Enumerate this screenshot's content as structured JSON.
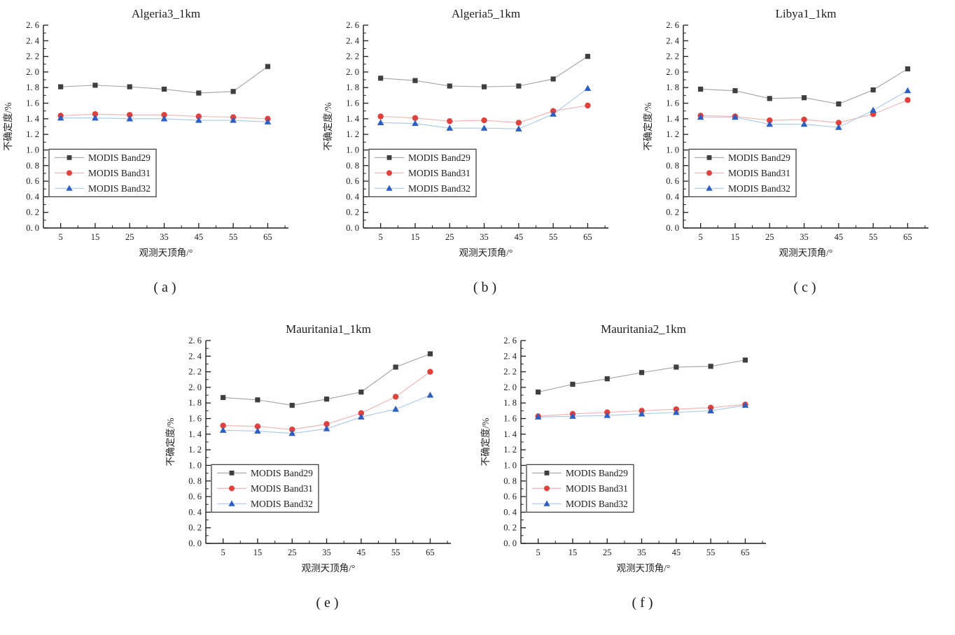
{
  "figure": {
    "background": "#ffffff",
    "text_color": "#1c1c1c",
    "axis_color": "#1c1c1c",
    "palette": {
      "band29_marker": "#3f3f3f",
      "band29_line": "#a3a3a3",
      "band31_marker": "#e0413c",
      "band31_line": "#f3b1af",
      "band32_marker": "#2d5fc2",
      "band32_line": "#a9c7e9"
    }
  },
  "chart_data": [
    {
      "type": "line",
      "title": "Algeria3_1km",
      "caption": "(a)",
      "xlabel": "观测天顶角/°",
      "ylabel": "不确定度/%",
      "x": [
        5,
        15,
        25,
        35,
        45,
        55,
        65
      ],
      "xlim": [
        0,
        71
      ],
      "ylim": [
        0,
        2.6
      ],
      "ytick_step": 0.2,
      "grid": false,
      "legend_position": "left-middle",
      "series": [
        {
          "name": "MODIS Band29",
          "marker": "square",
          "marker_color": "#3f3f3f",
          "line_color": "#a3a3a3",
          "values": [
            1.81,
            1.83,
            1.81,
            1.78,
            1.73,
            1.75,
            2.07
          ]
        },
        {
          "name": "MODIS Band31",
          "marker": "circle",
          "marker_color": "#e0413c",
          "line_color": "#f3b1af",
          "values": [
            1.44,
            1.46,
            1.45,
            1.45,
            1.43,
            1.42,
            1.4
          ]
        },
        {
          "name": "MODIS Band32",
          "marker": "triangle",
          "marker_color": "#2d5fc2",
          "line_color": "#a9c7e9",
          "values": [
            1.41,
            1.41,
            1.4,
            1.4,
            1.38,
            1.38,
            1.36
          ]
        }
      ]
    },
    {
      "type": "line",
      "title": "Algeria5_1km",
      "caption": "(b)",
      "xlabel": "观测天顶角/°",
      "ylabel": "不确定度/%",
      "x": [
        5,
        15,
        25,
        35,
        45,
        55,
        65
      ],
      "xlim": [
        0,
        71
      ],
      "ylim": [
        0,
        2.6
      ],
      "ytick_step": 0.2,
      "grid": false,
      "legend_position": "left-middle",
      "series": [
        {
          "name": "MODIS Band29",
          "marker": "square",
          "marker_color": "#3f3f3f",
          "line_color": "#a3a3a3",
          "values": [
            1.92,
            1.89,
            1.82,
            1.81,
            1.82,
            1.91,
            2.2
          ]
        },
        {
          "name": "MODIS Band31",
          "marker": "circle",
          "marker_color": "#e0413c",
          "line_color": "#f3b1af",
          "values": [
            1.43,
            1.41,
            1.37,
            1.38,
            1.35,
            1.5,
            1.57
          ]
        },
        {
          "name": "MODIS Band32",
          "marker": "triangle",
          "marker_color": "#2d5fc2",
          "line_color": "#a9c7e9",
          "values": [
            1.35,
            1.34,
            1.28,
            1.28,
            1.27,
            1.46,
            1.79
          ]
        }
      ]
    },
    {
      "type": "line",
      "title": "Libya1_1km",
      "caption": "(c)",
      "xlabel": "观测天顶角/°",
      "ylabel": "不确定度/%",
      "x": [
        5,
        15,
        25,
        35,
        45,
        55,
        65
      ],
      "xlim": [
        0,
        71
      ],
      "ylim": [
        0,
        2.6
      ],
      "ytick_step": 0.2,
      "grid": false,
      "legend_position": "left-middle",
      "series": [
        {
          "name": "MODIS Band29",
          "marker": "square",
          "marker_color": "#3f3f3f",
          "line_color": "#a3a3a3",
          "values": [
            1.78,
            1.76,
            1.66,
            1.67,
            1.59,
            1.77,
            2.04
          ]
        },
        {
          "name": "MODIS Band31",
          "marker": "circle",
          "marker_color": "#e0413c",
          "line_color": "#f3b1af",
          "values": [
            1.44,
            1.43,
            1.38,
            1.39,
            1.35,
            1.46,
            1.64
          ]
        },
        {
          "name": "MODIS Band32",
          "marker": "triangle",
          "marker_color": "#2d5fc2",
          "line_color": "#a9c7e9",
          "values": [
            1.42,
            1.42,
            1.33,
            1.33,
            1.29,
            1.51,
            1.76
          ]
        }
      ]
    },
    {
      "type": "line",
      "title": "Mauritania1_1km",
      "caption": "(e)",
      "xlabel": "观测天顶角/°",
      "ylabel": "不确定度/%",
      "x": [
        5,
        15,
        25,
        35,
        45,
        55,
        65
      ],
      "xlim": [
        0,
        71
      ],
      "ylim": [
        0,
        2.6
      ],
      "ytick_step": 0.2,
      "grid": false,
      "legend_position": "left-middle",
      "series": [
        {
          "name": "MODIS Band29",
          "marker": "square",
          "marker_color": "#3f3f3f",
          "line_color": "#a3a3a3",
          "values": [
            1.87,
            1.84,
            1.77,
            1.85,
            1.94,
            2.26,
            2.43
          ]
        },
        {
          "name": "MODIS Band31",
          "marker": "circle",
          "marker_color": "#e0413c",
          "line_color": "#f3b1af",
          "values": [
            1.51,
            1.5,
            1.46,
            1.53,
            1.67,
            1.88,
            2.2
          ]
        },
        {
          "name": "MODIS Band32",
          "marker": "triangle",
          "marker_color": "#2d5fc2",
          "line_color": "#a9c7e9",
          "values": [
            1.45,
            1.44,
            1.41,
            1.47,
            1.62,
            1.72,
            1.9
          ]
        }
      ]
    },
    {
      "type": "line",
      "title": "Mauritania2_1km",
      "caption": "(f)",
      "xlabel": "观测天顶角/°",
      "ylabel": "不确定度/%",
      "x": [
        5,
        15,
        25,
        35,
        45,
        55,
        65
      ],
      "xlim": [
        0,
        71
      ],
      "ylim": [
        0,
        2.6
      ],
      "ytick_step": 0.2,
      "grid": false,
      "legend_position": "left-middle",
      "series": [
        {
          "name": "MODIS Band29",
          "marker": "square",
          "marker_color": "#3f3f3f",
          "line_color": "#a3a3a3",
          "values": [
            1.94,
            2.04,
            2.11,
            2.19,
            2.26,
            2.27,
            2.35
          ]
        },
        {
          "name": "MODIS Band31",
          "marker": "circle",
          "marker_color": "#e0413c",
          "line_color": "#f3b1af",
          "values": [
            1.63,
            1.66,
            1.68,
            1.7,
            1.72,
            1.74,
            1.78
          ]
        },
        {
          "name": "MODIS Band32",
          "marker": "triangle",
          "marker_color": "#2d5fc2",
          "line_color": "#a9c7e9",
          "values": [
            1.62,
            1.63,
            1.64,
            1.66,
            1.68,
            1.7,
            1.77
          ]
        }
      ]
    }
  ]
}
